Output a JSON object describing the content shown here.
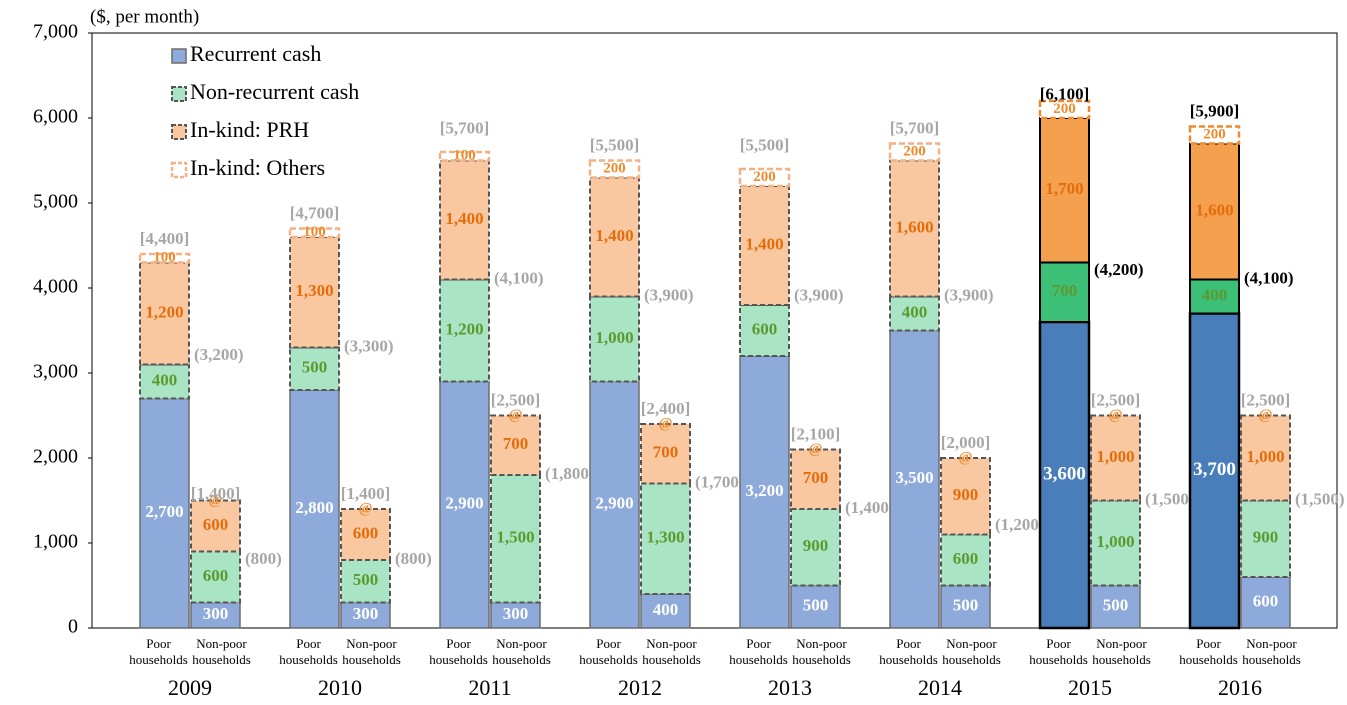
{
  "chart_data": {
    "type": "stacked-bar",
    "y_label": "($, per month)",
    "groups": [
      "2009",
      "2010",
      "2011",
      "2012",
      "2013",
      "2014",
      "2015",
      "2016"
    ],
    "categories": [
      "Poor households",
      "Non-poor households",
      "Poor households",
      "Non-poor households",
      "Poor households",
      "Non-poor households",
      "Poor households",
      "Non-poor households",
      "Poor households",
      "Non-poor households",
      "Poor households",
      "Non-poor households",
      "Poor households",
      "Non-poor households",
      "Poor households",
      "Non-poor households"
    ],
    "ylim": [
      0,
      7000
    ],
    "yticks": [
      0,
      {
        "value": 1000,
        "label": "1,000"
      },
      {
        "value": 2000,
        "label": "2,000"
      },
      {
        "value": 3000,
        "label": "3,000"
      },
      {
        "value": 4000,
        "label": "4,000"
      },
      {
        "value": 5000,
        "label": "5,000"
      },
      {
        "value": 6000,
        "label": "6,000"
      },
      {
        "value": 7000,
        "label": "7,000"
      }
    ],
    "grid": false,
    "legend": "top-left",
    "highlight": [
      12,
      14
    ],
    "series": [
      {
        "name": "Recurrent cash",
        "color": "#8eaadb",
        "highlight_color": "#4a7ebb",
        "label_color": "#ffffff",
        "border": "solid",
        "values": [
          2700,
          300,
          2800,
          300,
          2900,
          300,
          2900,
          400,
          3200,
          500,
          3500,
          500,
          3600,
          500,
          3700,
          600
        ],
        "value_labels": [
          "2,700",
          "300",
          "2,800",
          "300",
          "2,900",
          "300",
          "2,900",
          "400",
          "3,200",
          "500",
          "3,500",
          "500",
          "3,600",
          "500",
          "3,700",
          "600"
        ]
      },
      {
        "name": "Non-recurrent cash",
        "color": "#a9e4c5",
        "highlight_color": "#3cbf76",
        "label_color": "#5b9a2e",
        "border": "dashed",
        "values": [
          400,
          600,
          500,
          500,
          1200,
          1500,
          1000,
          1300,
          600,
          900,
          400,
          600,
          700,
          1000,
          400,
          900
        ],
        "value_labels": [
          "400",
          "600",
          "500",
          "500",
          "1,200",
          "1,500",
          "1,000",
          "1,300",
          "600",
          "900",
          "400",
          "600",
          "700",
          "1,000",
          "400",
          "900"
        ]
      },
      {
        "name": "In-kind: PRH",
        "color": "#f9c8a0",
        "highlight_color": "#f4a04e",
        "label_color": "#e46c0a",
        "border": "dashed",
        "values": [
          1200,
          600,
          1300,
          600,
          1400,
          700,
          1400,
          700,
          1400,
          700,
          1600,
          900,
          1700,
          1000,
          1600,
          1000
        ],
        "value_labels": [
          "1,200",
          "600",
          "1,300",
          "600",
          "1,400",
          "700",
          "1,400",
          "700",
          "1,400",
          "700",
          "1,600",
          "900",
          "1,700",
          "1,000",
          "1,600",
          "1,000"
        ]
      },
      {
        "name": "In-kind: Others",
        "color": "#ffffff",
        "highlight_color": "#ffffff",
        "label_color": "#f08a2c",
        "border": "outline",
        "values": [
          100,
          0,
          100,
          0,
          100,
          0,
          200,
          0,
          200,
          0,
          200,
          0,
          200,
          0,
          200,
          0
        ],
        "value_labels": [
          "100",
          "@",
          "100",
          "@",
          "100",
          "@",
          "200",
          "@",
          "200",
          "@",
          "200",
          "@",
          "200",
          "@",
          "200",
          "@"
        ]
      }
    ],
    "totals": {
      "values": [
        4400,
        1400,
        4700,
        1400,
        5700,
        2500,
        5500,
        2400,
        5500,
        2100,
        5700,
        2000,
        6100,
        2500,
        5900,
        2500
      ],
      "value_labels": [
        "[4,400]",
        "[1,400]",
        "[4,700]",
        "[1,400]",
        "[5,700]",
        "[2,500]",
        "[5,500]",
        "[2,400]",
        "[5,500]",
        "[2,100]",
        "[5,700]",
        "[2,000]",
        "[6,100]",
        "[2,500]",
        "[5,900]",
        "[2,500]"
      ]
    },
    "subtotals": {
      "values": [
        3200,
        800,
        3300,
        800,
        4100,
        1800,
        3900,
        1700,
        3900,
        1400,
        3900,
        1200,
        4200,
        1500,
        4100,
        1500
      ],
      "value_labels": [
        "(3,200)",
        "(800)",
        "(3,300)",
        "(800)",
        "(4,100)",
        "(1,800)",
        "(3,900)",
        "(1,700)",
        "(3,900)",
        "(1,400)",
        "(3,900)",
        "(1,200)",
        "(4,200)",
        "(1,500)",
        "(4,100)",
        "(1,500)"
      ]
    }
  }
}
